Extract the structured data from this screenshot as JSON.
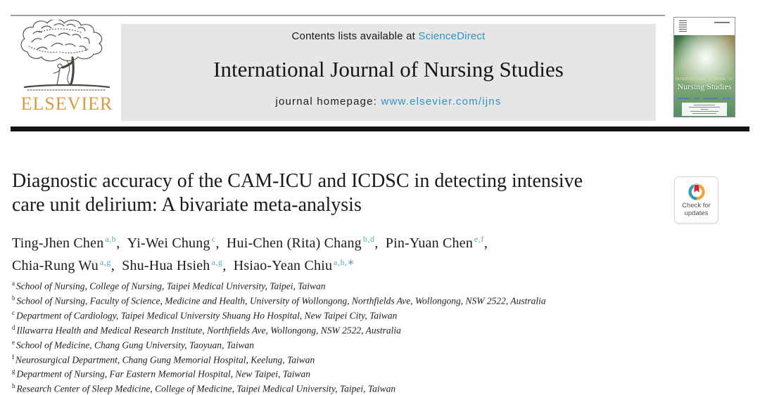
{
  "colors": {
    "link_blue": "#2e93c5",
    "superscript_blue": "#5aa5c8",
    "elsevier_orange": "#d99b3c",
    "banner_gray": "#e6e6e6",
    "bar_black": "#141414",
    "badge_red": "#cf2633",
    "badge_yellow": "#efa733",
    "badge_teal": "#2e9dbd"
  },
  "icons": {
    "elsevier_logo": "tree-engraving",
    "check_updates_badge": "crossmark-circle-bookmark",
    "cover_thumbnail": "journal-cover"
  },
  "header": {
    "publisher_name": "ELSEVIER",
    "banner": {
      "contents_prefix": "Contents lists available at ",
      "contents_link": "ScienceDirect",
      "journal_title": "International Journal of Nursing Studies",
      "homepage_prefix": "journal homepage: ",
      "homepage_url": "www.elsevier.com/ijns"
    },
    "cover": {
      "kicker": "INTERNATIONAL JOURNAL OF",
      "title": "Nursing Studies"
    }
  },
  "article": {
    "title_lines": [
      "Diagnostic accuracy of the CAM-ICU and ICDSC in detecting intensive",
      "care unit delirium: A bivariate meta-analysis"
    ],
    "authors": [
      {
        "name": "Ting-Jhen Chen",
        "sup": "a,b",
        "sep": ", "
      },
      {
        "name": "Yi-Wei Chung",
        "sup": "c",
        "sep": ", "
      },
      {
        "name": "Hui-Chen (Rita) Chang",
        "sup": "b,d",
        "sep": ", "
      },
      {
        "name": "Pin-Yuan Chen",
        "sup": "e,f",
        "sep": ",",
        "break_after": true
      },
      {
        "name": "Chia-Rung Wu",
        "sup": "a,g",
        "sep": ", "
      },
      {
        "name": "Shu-Hua Hsieh",
        "sup": "a,g",
        "sep": ", "
      },
      {
        "name": "Hsiao-Yean Chiu",
        "sup": "a,h,∗"
      }
    ],
    "affiliations": [
      {
        "sup": "a",
        "text": "School of Nursing, College of Nursing, Taipei Medical University, Taipei, Taiwan"
      },
      {
        "sup": "b",
        "text": "School of Nursing, Faculty of Science, Medicine and Health, University of Wollongong, Northfields Ave, Wollongong, NSW 2522, Australia"
      },
      {
        "sup": "c",
        "text": "Department of Cardiology, Taipei Medical University Shuang Ho Hospital, New Taipei City, Taiwan"
      },
      {
        "sup": "d",
        "text": "Illawarra Health and Medical Research Institute, Northfields Ave, Wollongong, NSW 2522, Australia"
      },
      {
        "sup": "e",
        "text": "School of Medicine, Chang Gung University, Taoyuan, Taiwan"
      },
      {
        "sup": "f",
        "text": "Neurosurgical Department, Chang Gung Memorial Hospital, Keelung, Taiwan"
      },
      {
        "sup": "g",
        "text": "Department of Nursing, Far Eastern Memorial Hospital, New Taipei, Taiwan"
      },
      {
        "sup": "h",
        "text": "Research Center of Sleep Medicine, College of Medicine, Taipei Medical University, Taipei, Taiwan"
      }
    ]
  },
  "badge": {
    "label_line1": "Check for",
    "label_line2": "updates"
  }
}
